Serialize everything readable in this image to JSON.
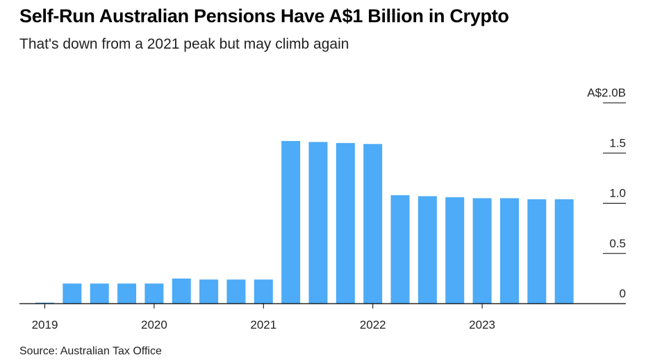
{
  "header": {
    "title": "Self-Run Australian Pensions Have A$1 Billion in Crypto",
    "subtitle": "That's down from a 2021 peak but may climb again"
  },
  "footer": {
    "source": "Source: Australian Tax Office"
  },
  "chart_data": {
    "type": "bar",
    "title": "Self-Run Australian Pensions Have A$1 Billion in Crypto",
    "subtitle": "That's down from a 2021 peak but may climb again",
    "xlabel": "",
    "ylabel": "",
    "ylim": [
      0,
      2.0
    ],
    "y_unit": "A$ billions",
    "y_ticks": [
      {
        "value": 2.0,
        "label": "A$2.0B"
      },
      {
        "value": 1.5,
        "label": "1.5"
      },
      {
        "value": 1.0,
        "label": "1.0"
      },
      {
        "value": 0.5,
        "label": "0.5"
      },
      {
        "value": 0,
        "label": "0"
      }
    ],
    "x_ticks": [
      {
        "label": "2019",
        "index": 0
      },
      {
        "label": "2020",
        "index": 4
      },
      {
        "label": "2021",
        "index": 8
      },
      {
        "label": "2022",
        "index": 12
      },
      {
        "label": "2023",
        "index": 16
      }
    ],
    "categories": [
      "Q1 2019",
      "Q2 2019",
      "Q3 2019",
      "Q4 2019",
      "Q1 2020",
      "Q2 2020",
      "Q3 2020",
      "Q4 2020",
      "Q1 2021",
      "Q2 2021",
      "Q3 2021",
      "Q4 2021",
      "Q1 2022",
      "Q2 2022",
      "Q3 2022",
      "Q4 2022",
      "Q1 2023",
      "Q2 2023",
      "Q3 2023",
      "Q4 2023"
    ],
    "values": [
      0.01,
      0.2,
      0.2,
      0.2,
      0.2,
      0.25,
      0.24,
      0.24,
      0.24,
      1.62,
      1.61,
      1.6,
      1.59,
      1.08,
      1.07,
      1.06,
      1.05,
      1.05,
      1.04,
      1.04
    ],
    "bar_color": "#4dabf7",
    "grid": false,
    "legend": "none"
  }
}
